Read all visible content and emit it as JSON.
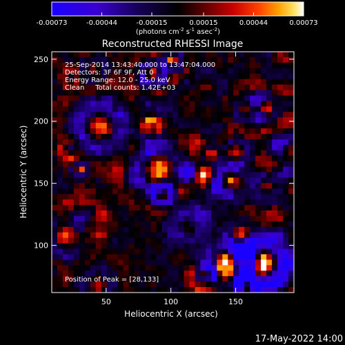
{
  "chart_data": {
    "type": "heatmap",
    "title": "Reconstructed RHESSI Image",
    "xlabel": "Heliocentric X (arcsec)",
    "ylabel": "Heliocentric Y (arcsec)",
    "xlim": [
      8,
      195
    ],
    "ylim": [
      62,
      256
    ],
    "x_ticks": [
      "50",
      "100",
      "150"
    ],
    "y_ticks": [
      "100",
      "150",
      "200",
      "250"
    ],
    "colorbar": {
      "min": -0.00073,
      "max": 0.00073,
      "tick_labels": [
        "-0.00073",
        "-0.00044",
        "-0.00015",
        "0.00015",
        "0.00044",
        "0.00073"
      ],
      "unit_main": "(photons cm",
      "unit_sup1": "-2",
      "unit_mid1": " s",
      "unit_sup2": "-1",
      "unit_mid2": " asec",
      "unit_sup3": "-2",
      "unit_end": ")"
    },
    "annotations": {
      "time_range": "25-Sep-2014 13:43:40.000 to 13:47:04.000",
      "detectors": "Detectors: 3F 6F 9F, Att 0",
      "energy_range": "Energy Range: 12.0 - 25.0 keV",
      "clean": "Clean     Total counts: 1.42E+03",
      "peak": "Position of Peak = [28,133]"
    },
    "peak_position": [
      28,
      133
    ]
  },
  "footer": {
    "timestamp": "17-May-2022 14:00"
  },
  "colors": {
    "background": "#000000",
    "colorbar_low": "#0000ff",
    "colorbar_mid": "#000000",
    "colorbar_high": "#ffffff"
  }
}
